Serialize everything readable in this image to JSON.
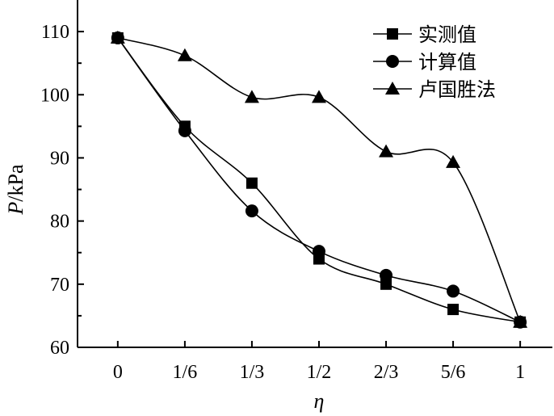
{
  "chart_data": {
    "type": "line",
    "categories": [
      "0",
      "1/6",
      "1/3",
      "1/2",
      "2/3",
      "5/6",
      "1"
    ],
    "x": [
      0,
      0.1667,
      0.3333,
      0.5,
      0.6667,
      0.8333,
      1
    ],
    "series": [
      {
        "name": "实测值",
        "marker": "square",
        "values": [
          109,
          95,
          86,
          74,
          70,
          66,
          64
        ]
      },
      {
        "name": "计算值",
        "marker": "circle",
        "values": [
          109,
          94.3,
          81.6,
          75.2,
          71.4,
          68.9,
          64
        ]
      },
      {
        "name": "卢国胜法",
        "marker": "triangle",
        "values": [
          109,
          106.2,
          99.6,
          99.6,
          91,
          89.3,
          64
        ]
      }
    ],
    "xlabel": "η",
    "ylabel_italic": "P",
    "ylabel_unit": "/kPa",
    "xlim": [
      -0.1,
      1.08
    ],
    "ylim": [
      60,
      115
    ],
    "yticks": [
      60,
      70,
      80,
      90,
      100,
      110
    ],
    "grid": false,
    "legend_position": "top-right",
    "line_color": "#000000"
  }
}
